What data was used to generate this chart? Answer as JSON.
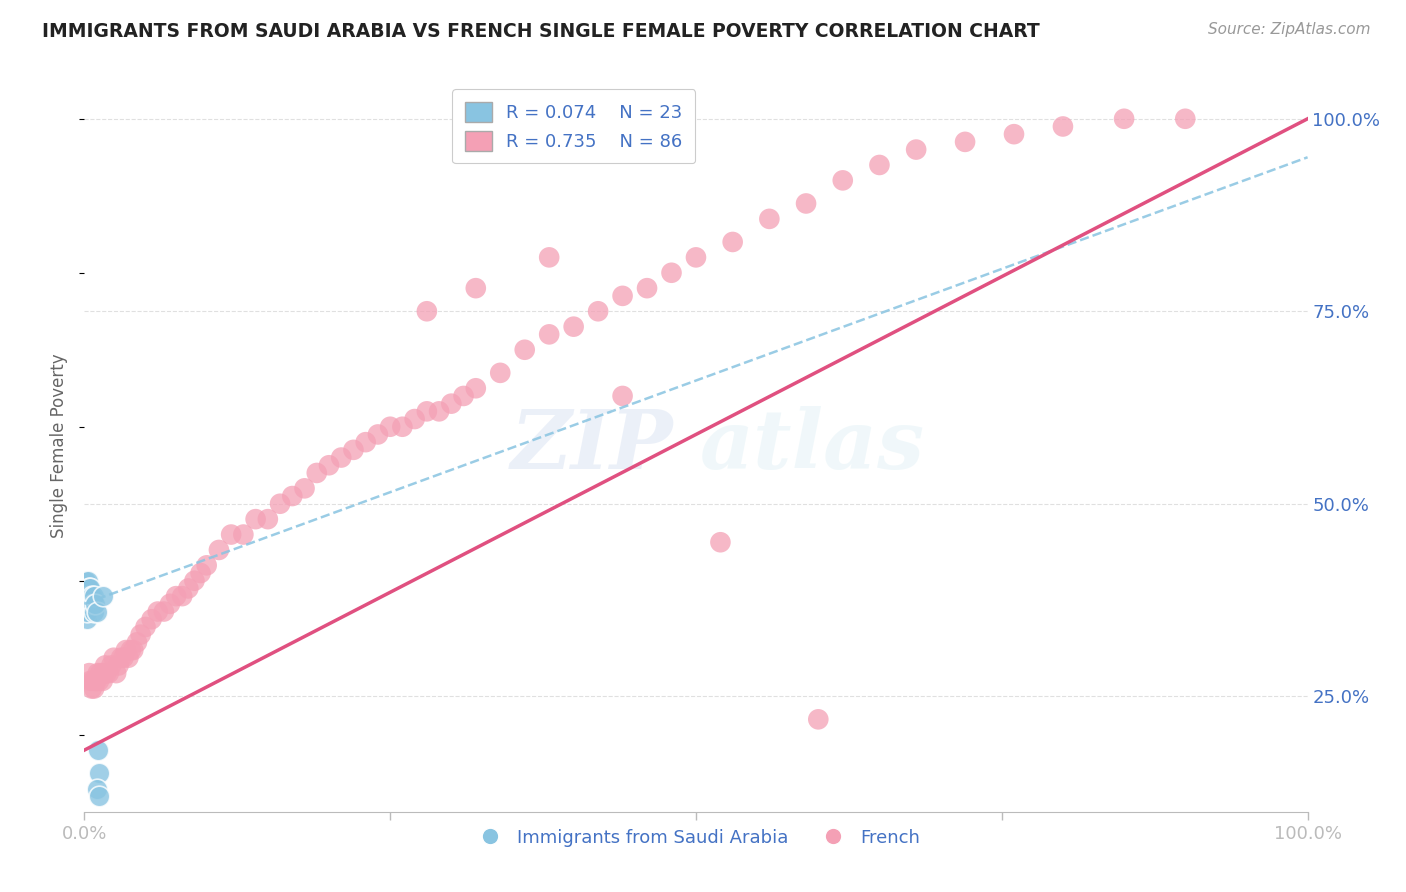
{
  "title": "IMMIGRANTS FROM SAUDI ARABIA VS FRENCH SINGLE FEMALE POVERTY CORRELATION CHART",
  "source": "Source: ZipAtlas.com",
  "ylabel": "Single Female Poverty",
  "legend_label_blue": "Immigrants from Saudi Arabia",
  "legend_label_pink": "French",
  "R_blue": 0.074,
  "N_blue": 23,
  "R_pink": 0.735,
  "N_pink": 86,
  "xmin": 0.0,
  "xmax": 1.0,
  "ymin": 0.1,
  "ymax": 1.05,
  "background_color": "#ffffff",
  "blue_color": "#89c4e1",
  "pink_color": "#f4a0b5",
  "blue_line_color": "#89c4e1",
  "pink_line_color": "#e05080",
  "grid_color": "#e0e0e0",
  "title_color": "#222222",
  "axis_label_color": "#4472c4",
  "blue_x": [
    0.001,
    0.001,
    0.002,
    0.002,
    0.002,
    0.003,
    0.003,
    0.003,
    0.004,
    0.004,
    0.005,
    0.005,
    0.006,
    0.007,
    0.008,
    0.008,
    0.009,
    0.01,
    0.011,
    0.012,
    0.015,
    0.01,
    0.012
  ],
  "blue_y": [
    0.38,
    0.4,
    0.35,
    0.36,
    0.38,
    0.37,
    0.38,
    0.4,
    0.38,
    0.39,
    0.38,
    0.39,
    0.38,
    0.37,
    0.36,
    0.38,
    0.37,
    0.36,
    0.18,
    0.15,
    0.38,
    0.13,
    0.12
  ],
  "pink_x": [
    0.004,
    0.005,
    0.006,
    0.007,
    0.008,
    0.009,
    0.01,
    0.011,
    0.012,
    0.013,
    0.015,
    0.016,
    0.017,
    0.018,
    0.02,
    0.022,
    0.024,
    0.026,
    0.028,
    0.03,
    0.032,
    0.034,
    0.036,
    0.038,
    0.04,
    0.043,
    0.046,
    0.05,
    0.055,
    0.06,
    0.065,
    0.07,
    0.075,
    0.08,
    0.085,
    0.09,
    0.095,
    0.1,
    0.11,
    0.12,
    0.13,
    0.14,
    0.15,
    0.16,
    0.17,
    0.18,
    0.19,
    0.2,
    0.21,
    0.22,
    0.23,
    0.24,
    0.25,
    0.26,
    0.27,
    0.28,
    0.29,
    0.3,
    0.31,
    0.32,
    0.34,
    0.36,
    0.38,
    0.4,
    0.42,
    0.44,
    0.46,
    0.48,
    0.5,
    0.53,
    0.56,
    0.59,
    0.62,
    0.65,
    0.68,
    0.72,
    0.76,
    0.8,
    0.85,
    0.9,
    0.28,
    0.32,
    0.38,
    0.44,
    0.52,
    0.6
  ],
  "pink_y": [
    0.28,
    0.27,
    0.26,
    0.27,
    0.26,
    0.27,
    0.27,
    0.28,
    0.27,
    0.28,
    0.27,
    0.28,
    0.29,
    0.28,
    0.28,
    0.29,
    0.3,
    0.28,
    0.29,
    0.3,
    0.3,
    0.31,
    0.3,
    0.31,
    0.31,
    0.32,
    0.33,
    0.34,
    0.35,
    0.36,
    0.36,
    0.37,
    0.38,
    0.38,
    0.39,
    0.4,
    0.41,
    0.42,
    0.44,
    0.46,
    0.46,
    0.48,
    0.48,
    0.5,
    0.51,
    0.52,
    0.54,
    0.55,
    0.56,
    0.57,
    0.58,
    0.59,
    0.6,
    0.6,
    0.61,
    0.62,
    0.62,
    0.63,
    0.64,
    0.65,
    0.67,
    0.7,
    0.72,
    0.73,
    0.75,
    0.77,
    0.78,
    0.8,
    0.82,
    0.84,
    0.87,
    0.89,
    0.92,
    0.94,
    0.96,
    0.97,
    0.98,
    0.99,
    1.0,
    1.0,
    0.75,
    0.78,
    0.82,
    0.64,
    0.45,
    0.22
  ],
  "pink_line_x0": 0.0,
  "pink_line_y0": 0.18,
  "pink_line_x1": 1.0,
  "pink_line_y1": 1.0,
  "blue_line_x0": 0.0,
  "blue_line_y0": 0.37,
  "blue_line_x1": 1.0,
  "blue_line_y1": 0.95
}
